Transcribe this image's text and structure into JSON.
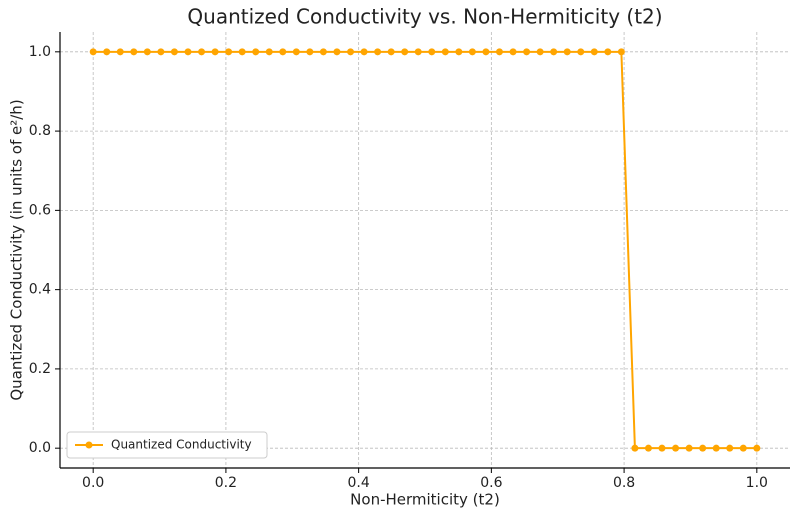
{
  "chart_data": {
    "type": "line",
    "title": "Quantized Conductivity vs. Non-Hermiticity (t2)",
    "xlabel": "Non-Hermiticity (t2)",
    "ylabel": "Quantized Conductivity (in units of e²/h)",
    "x": [
      0,
      0.0204,
      0.0408,
      0.0612,
      0.0816,
      0.102,
      0.1224,
      0.1429,
      0.1633,
      0.1837,
      0.2041,
      0.2245,
      0.2449,
      0.2653,
      0.2857,
      0.3061,
      0.3265,
      0.3469,
      0.3673,
      0.3878,
      0.4082,
      0.4286,
      0.449,
      0.4694,
      0.4898,
      0.5102,
      0.5306,
      0.551,
      0.5714,
      0.5918,
      0.6122,
      0.6327,
      0.6531,
      0.6735,
      0.6939,
      0.7143,
      0.7347,
      0.7551,
      0.7755,
      0.7959,
      0.8163,
      0.8367,
      0.8571,
      0.8776,
      0.898,
      0.9184,
      0.9388,
      0.9592,
      0.9796,
      1
    ],
    "series": [
      {
        "name": "Quantized Conductivity",
        "color": "#ffa500",
        "values": [
          1,
          1,
          1,
          1,
          1,
          1,
          1,
          1,
          1,
          1,
          1,
          1,
          1,
          1,
          1,
          1,
          1,
          1,
          1,
          1,
          1,
          1,
          1,
          1,
          1,
          1,
          1,
          1,
          1,
          1,
          1,
          1,
          1,
          1,
          1,
          1,
          1,
          1,
          1,
          1,
          0,
          0,
          0,
          0,
          0,
          0,
          0,
          0,
          0,
          0
        ]
      }
    ],
    "xlim": [
      -0.05,
      1.05
    ],
    "ylim": [
      -0.05,
      1.05
    ],
    "xticks": [
      {
        "value": 0,
        "label": "0.0"
      },
      0.2,
      0.4,
      0.6,
      0.8,
      {
        "value": 1,
        "label": "1.0"
      }
    ],
    "yticks": [
      {
        "value": 0,
        "label": "0.0"
      },
      0.2,
      0.4,
      0.6,
      0.8,
      {
        "value": 1,
        "label": "1.0"
      }
    ],
    "grid": true,
    "legend": "lower left"
  }
}
